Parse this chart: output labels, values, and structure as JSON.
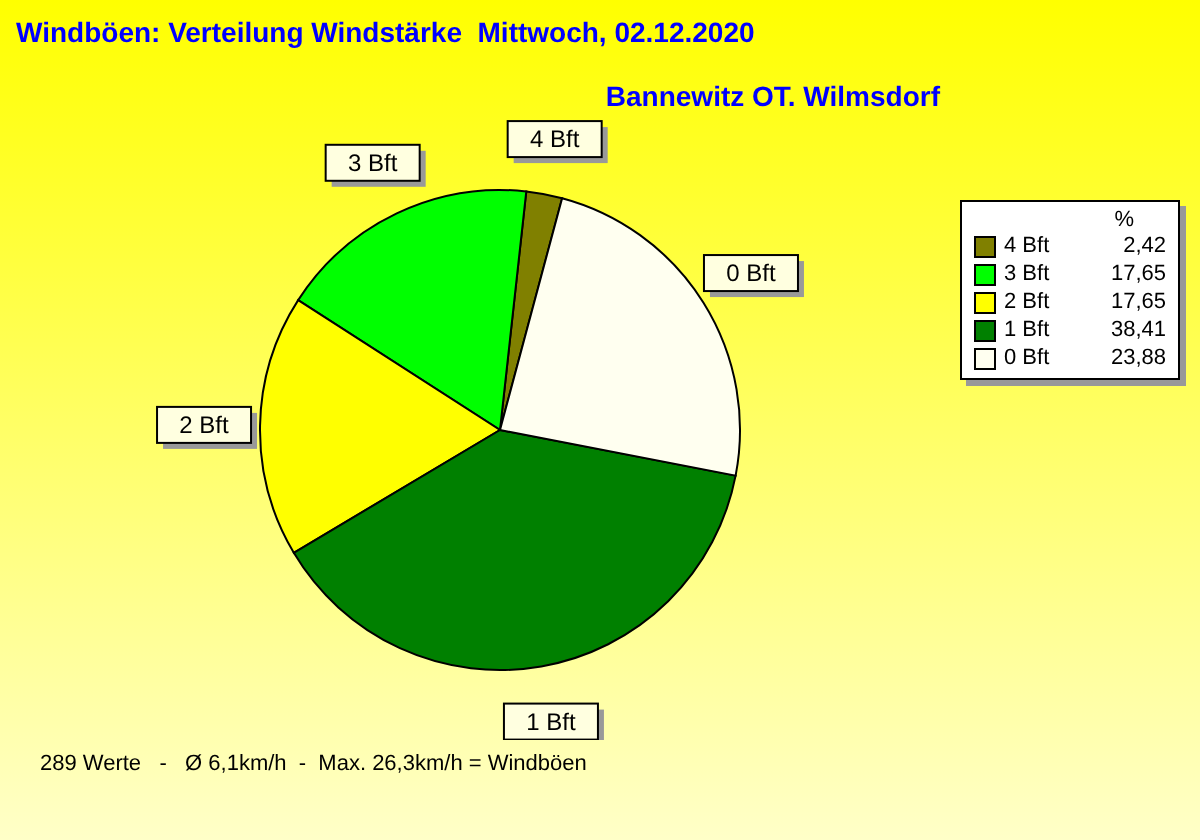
{
  "chart_data": {
    "type": "pie",
    "title": "Windböen: Verteilung Windstärke  Mittwoch, 02.12.2020",
    "subtitle": "Bannewitz OT. Wilmsdorf",
    "legend_title": "%",
    "categories": [
      "4 Bft",
      "3 Bft",
      "2 Bft",
      "1 Bft",
      "0 Bft"
    ],
    "values": [
      2.42,
      17.65,
      17.65,
      38.41,
      23.88
    ],
    "value_labels": [
      "2,42",
      "17,65",
      "17,65",
      "38,41",
      "23,88"
    ],
    "colors": [
      "#808000",
      "#00ff00",
      "#ffff00",
      "#008000",
      "#fffff0"
    ],
    "legend": "top right",
    "annotations": [
      "289 Werte   -   Ø 6,1km/h  -  Max. 26,3km/h = Windböen"
    ]
  }
}
